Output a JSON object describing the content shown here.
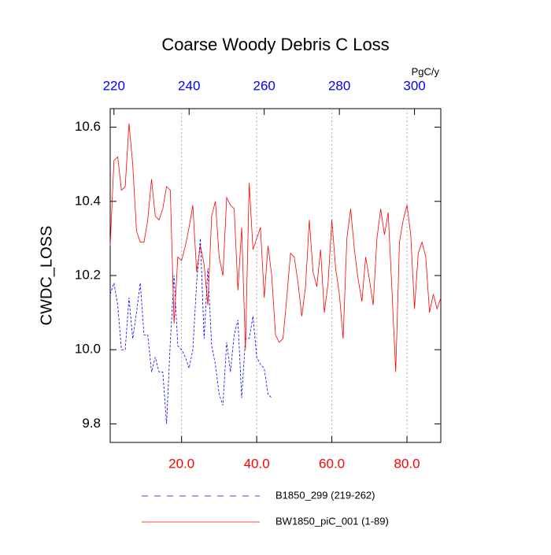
{
  "chart_data": {
    "type": "line",
    "title": "Coarse Woody Debris C Loss",
    "ylabel": "CWDC_LOSS",
    "x2label": "PgC/y",
    "xlim": [
      1,
      89
    ],
    "xticks": [
      {
        "value": 20,
        "label": "20.0"
      },
      {
        "value": 40,
        "label": "40.0"
      },
      {
        "value": 60,
        "label": "60.0"
      },
      {
        "value": 80,
        "label": "80.0"
      }
    ],
    "xtick_color": "#ff0000",
    "x2lim": [
      219,
      307
    ],
    "x2ticks": [
      220,
      240,
      260,
      280,
      300
    ],
    "x2tick_color": "#0000ff",
    "ylim": [
      9.75,
      10.65
    ],
    "yticks": [
      9.8,
      {
        "value": 10,
        "label": "10.0"
      },
      10.2,
      10.4,
      10.6
    ],
    "grid": true,
    "grid_color": "#aaaaaa",
    "legend": "bottom",
    "series": [
      {
        "name": "B1850_299 (219-262)",
        "color": "#0000ff",
        "line_style": "dashed",
        "xaxis": "x2",
        "x": [
          219,
          220,
          221,
          222,
          223,
          224,
          225,
          226,
          227,
          228,
          229,
          230,
          231,
          232,
          233,
          234,
          235,
          236,
          237,
          238,
          239,
          240,
          241,
          242,
          243,
          244,
          245,
          246,
          247,
          248,
          249,
          250,
          251,
          252,
          253,
          254,
          255,
          256,
          257,
          258,
          259,
          260,
          261,
          262
        ],
        "values": [
          10.15,
          10.18,
          10.12,
          10.0,
          10.0,
          10.14,
          10.03,
          10.1,
          10.18,
          10.04,
          10.04,
          9.94,
          9.98,
          9.94,
          9.94,
          9.8,
          10.02,
          10.2,
          10.01,
          10.0,
          9.98,
          9.95,
          10.0,
          10.18,
          10.3,
          10.03,
          10.22,
          10.01,
          9.96,
          9.88,
          9.85,
          10.02,
          9.94,
          10.04,
          10.08,
          9.87,
          10.03,
          10.03,
          10.09,
          9.98,
          9.96,
          9.95,
          9.88,
          9.87
        ]
      },
      {
        "name": "BW1850_piC_001 (1-89)",
        "color": "#ff0000",
        "line_style": "solid",
        "xaxis": "x",
        "x": [
          1,
          2,
          3,
          4,
          5,
          6,
          7,
          8,
          9,
          10,
          11,
          12,
          13,
          14,
          15,
          16,
          17,
          18,
          19,
          20,
          21,
          22,
          23,
          24,
          25,
          26,
          27,
          28,
          29,
          30,
          31,
          32,
          33,
          34,
          35,
          36,
          37,
          38,
          39,
          40,
          41,
          42,
          43,
          44,
          45,
          46,
          47,
          48,
          49,
          50,
          51,
          52,
          53,
          54,
          55,
          56,
          57,
          58,
          59,
          60,
          61,
          62,
          63,
          64,
          65,
          66,
          67,
          68,
          69,
          70,
          71,
          72,
          73,
          74,
          75,
          76,
          77,
          78,
          79,
          80,
          81,
          82,
          83,
          84,
          85,
          86,
          87,
          88,
          89
        ],
        "values": [
          10.28,
          10.51,
          10.52,
          10.43,
          10.44,
          10.61,
          10.5,
          10.32,
          10.29,
          10.29,
          10.35,
          10.46,
          10.36,
          10.35,
          10.38,
          10.44,
          10.43,
          10.07,
          10.25,
          10.24,
          10.28,
          10.33,
          10.39,
          10.21,
          10.28,
          10.23,
          10.12,
          10.36,
          10.4,
          10.25,
          10.2,
          10.41,
          10.39,
          10.38,
          10.16,
          10.33,
          10.0,
          10.45,
          10.27,
          10.3,
          10.33,
          10.14,
          10.28,
          10.2,
          10.04,
          10.02,
          10.03,
          10.14,
          10.26,
          10.25,
          10.18,
          10.09,
          10.17,
          10.35,
          10.21,
          10.17,
          10.27,
          10.1,
          10.18,
          10.35,
          10.22,
          10.15,
          10.03,
          10.3,
          10.38,
          10.27,
          10.19,
          10.13,
          10.25,
          10.19,
          10.12,
          10.3,
          10.38,
          10.31,
          10.37,
          10.16,
          9.94,
          10.29,
          10.35,
          10.39,
          10.31,
          10.11,
          10.26,
          10.29,
          10.25,
          10.1,
          10.15,
          10.11,
          10.14
        ]
      }
    ]
  }
}
